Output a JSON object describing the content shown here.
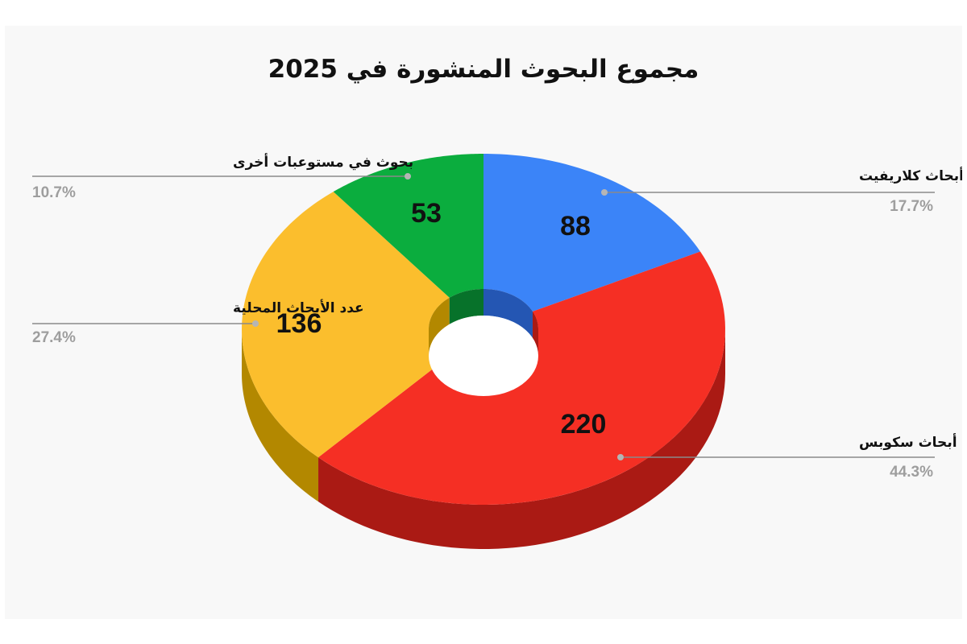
{
  "chart_data": {
    "type": "pie",
    "style": "3d-donut",
    "title": "مجموع البحوث المنشورة في 2025",
    "slices": [
      {
        "label": "عدد أبحاث كلاريفيت",
        "value": 88,
        "percent": "17.7%",
        "color": "#3b84f8",
        "side_color": "#2456b3",
        "legend_side": "right"
      },
      {
        "label": "عدد أبحاث سكوبس",
        "value": 220,
        "percent": "44.3%",
        "color": "#f52f24",
        "side_color": "#aa1a14",
        "legend_side": "right"
      },
      {
        "label": "عدد الأبحاث المحلية",
        "value": 136,
        "percent": "27.4%",
        "color": "#fbbe2d",
        "side_color": "#b38800",
        "legend_side": "left"
      },
      {
        "label": "بحوث في مستوعبات أخرى",
        "value": 53,
        "percent": "10.7%",
        "color": "#0bad3e",
        "side_color": "#07722a",
        "legend_side": "left"
      }
    ]
  }
}
